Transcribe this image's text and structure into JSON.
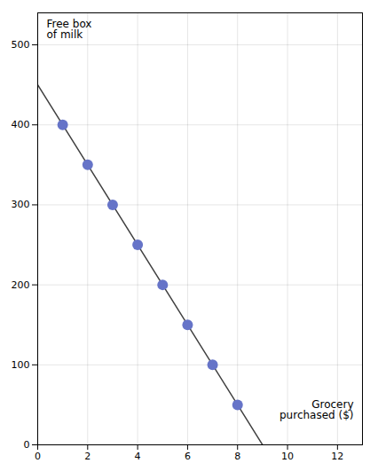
{
  "chart_data": {
    "type": "scatter",
    "xlabel": "Grocery\npurchased ($)",
    "ylabel": "Free box\nof milk",
    "series": [
      {
        "type": "line",
        "color": "#404040",
        "x": [
          0,
          9
        ],
        "values": [
          450,
          0
        ]
      },
      {
        "type": "scatter",
        "color": "#6674c8",
        "x": [
          1,
          2,
          3,
          4,
          5,
          6,
          7,
          8
        ],
        "values": [
          400,
          350,
          300,
          250,
          200,
          150,
          100,
          50
        ]
      }
    ],
    "xlim": [
      0,
      13
    ],
    "xticks": [
      0,
      2,
      4,
      6,
      8,
      10,
      12
    ],
    "ylim": [
      0,
      540
    ],
    "yticks": [
      0,
      100,
      200,
      300,
      400,
      500
    ],
    "grid": true
  }
}
